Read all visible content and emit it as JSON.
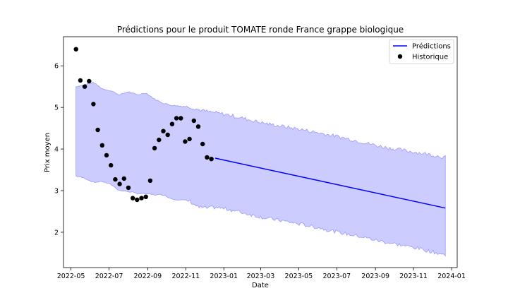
{
  "chart_data": {
    "type": "line",
    "title": "Prédictions pour le produit TOMATE ronde France grappe biologique",
    "xlabel": "Date",
    "ylabel": "Prix moyen",
    "xlim": [
      "2022-04-19",
      "2024-01-10"
    ],
    "ylim": [
      1.15,
      6.7
    ],
    "x_ticks": [
      "2022-05",
      "2022-07",
      "2022-09",
      "2022-11",
      "2023-01",
      "2023-03",
      "2023-05",
      "2023-07",
      "2023-09",
      "2023-11",
      "2024-01"
    ],
    "y_ticks": [
      2,
      3,
      4,
      5,
      6
    ],
    "legend": {
      "position": "top-right",
      "entries": [
        "Prédictions",
        "Historique"
      ]
    },
    "colors": {
      "prediction": "#0000ff",
      "band_fill": "#ccccff",
      "band_edge": "#9999ff",
      "history": "#000000"
    },
    "series": [
      {
        "name": "Prédictions",
        "style": "line",
        "x": [
          "2022-12-18",
          "2023-12-22"
        ],
        "y": [
          3.78,
          2.58
        ]
      },
      {
        "name": "Historique",
        "style": "scatter",
        "x": [
          "2022-05-09",
          "2022-05-16",
          "2022-05-23",
          "2022-05-30",
          "2022-06-06",
          "2022-06-13",
          "2022-06-20",
          "2022-06-27",
          "2022-07-04",
          "2022-07-11",
          "2022-07-18",
          "2022-07-25",
          "2022-08-01",
          "2022-08-08",
          "2022-08-15",
          "2022-08-22",
          "2022-08-29",
          "2022-09-05",
          "2022-09-12",
          "2022-09-19",
          "2022-09-26",
          "2022-10-03",
          "2022-10-10",
          "2022-10-17",
          "2022-10-24",
          "2022-10-31",
          "2022-11-07",
          "2022-11-14",
          "2022-11-21",
          "2022-11-28",
          "2022-12-05",
          "2022-12-12"
        ],
        "y": [
          6.4,
          5.65,
          5.5,
          5.63,
          5.08,
          4.46,
          4.09,
          3.85,
          3.61,
          3.27,
          3.16,
          3.29,
          3.07,
          2.82,
          2.78,
          2.82,
          2.85,
          3.24,
          4.02,
          4.22,
          4.43,
          4.34,
          4.6,
          4.74,
          4.74,
          4.18,
          4.24,
          4.68,
          4.54,
          4.12,
          3.8,
          3.76
        ]
      }
    ],
    "confidence_band": {
      "x": [
        "2022-05-09",
        "2022-05-23",
        "2022-06-06",
        "2022-06-20",
        "2022-07-04",
        "2022-07-18",
        "2022-08-01",
        "2022-08-15",
        "2022-08-29",
        "2022-09-12",
        "2022-09-26",
        "2022-10-10",
        "2022-10-24",
        "2022-11-07",
        "2022-11-21",
        "2022-12-05",
        "2022-12-19",
        "2023-01-09",
        "2023-02-06",
        "2023-03-06",
        "2023-04-03",
        "2023-05-01",
        "2023-06-05",
        "2023-07-03",
        "2023-08-07",
        "2023-09-04",
        "2023-10-02",
        "2023-11-06",
        "2023-12-04",
        "2023-12-22"
      ],
      "upper": [
        5.5,
        5.55,
        5.6,
        5.45,
        5.4,
        5.3,
        5.38,
        5.3,
        5.35,
        5.2,
        5.1,
        5.05,
        5.03,
        5.02,
        4.95,
        4.9,
        4.87,
        4.82,
        4.72,
        4.62,
        4.55,
        4.48,
        4.38,
        4.3,
        4.18,
        4.08,
        4.0,
        3.92,
        3.85,
        3.8
      ],
      "lower": [
        3.35,
        3.3,
        3.2,
        3.22,
        3.15,
        3.0,
        2.98,
        2.93,
        2.92,
        2.9,
        2.9,
        2.8,
        2.78,
        2.75,
        2.6,
        2.58,
        2.6,
        2.55,
        2.45,
        2.35,
        2.28,
        2.2,
        2.1,
        2.0,
        1.9,
        1.8,
        1.72,
        1.62,
        1.52,
        1.45
      ]
    }
  }
}
